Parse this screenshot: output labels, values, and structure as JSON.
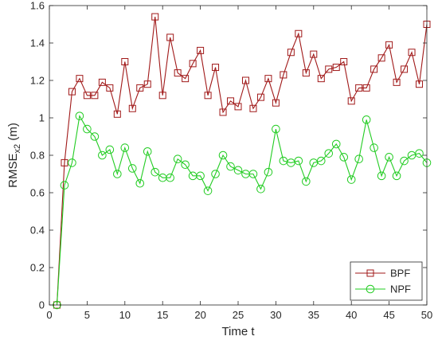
{
  "chart_data": {
    "type": "line",
    "xlabel": "Time t",
    "ylabel_main": "RMSE",
    "ylabel_sub": "x2",
    "ylabel_unit": " (m)",
    "xlim": [
      0,
      50
    ],
    "ylim": [
      0,
      1.6
    ],
    "xticks": [
      0,
      5,
      10,
      15,
      20,
      25,
      30,
      35,
      40,
      45,
      50
    ],
    "yticks": [
      0,
      0.2,
      0.4,
      0.6,
      0.8,
      1,
      1.2,
      1.4,
      1.6
    ],
    "ytick_labels": [
      "0",
      "0.2",
      "0.4",
      "0.6",
      "0.8",
      "1",
      "1.2",
      "1.4",
      "1.6"
    ],
    "grid": false,
    "legend_position": "bottom-right",
    "x": [
      1,
      2,
      3,
      4,
      5,
      6,
      7,
      8,
      9,
      10,
      11,
      12,
      13,
      14,
      15,
      16,
      17,
      18,
      19,
      20,
      21,
      22,
      23,
      24,
      25,
      26,
      27,
      28,
      29,
      30,
      31,
      32,
      33,
      34,
      35,
      36,
      37,
      38,
      39,
      40,
      41,
      42,
      43,
      44,
      45,
      46,
      47,
      48,
      49,
      50
    ],
    "series": [
      {
        "name": "BPF",
        "color": "#a01818",
        "marker": "square",
        "values": [
          0,
          0.76,
          1.14,
          1.21,
          1.12,
          1.12,
          1.19,
          1.16,
          1.02,
          1.3,
          1.05,
          1.16,
          1.18,
          1.54,
          1.12,
          1.43,
          1.24,
          1.21,
          1.29,
          1.36,
          1.12,
          1.27,
          1.03,
          1.09,
          1.06,
          1.2,
          1.05,
          1.11,
          1.21,
          1.08,
          1.23,
          1.35,
          1.45,
          1.24,
          1.34,
          1.21,
          1.26,
          1.27,
          1.3,
          1.09,
          1.16,
          1.16,
          1.26,
          1.32,
          1.39,
          1.19,
          1.26,
          1.35,
          1.18,
          1.5
        ]
      },
      {
        "name": "NPF",
        "color": "#22cc22",
        "marker": "circle",
        "values": [
          0,
          0.64,
          0.76,
          1.01,
          0.94,
          0.9,
          0.8,
          0.83,
          0.7,
          0.84,
          0.73,
          0.65,
          0.82,
          0.71,
          0.68,
          0.68,
          0.78,
          0.75,
          0.69,
          0.69,
          0.61,
          0.7,
          0.8,
          0.74,
          0.72,
          0.7,
          0.7,
          0.62,
          0.71,
          0.94,
          0.77,
          0.76,
          0.77,
          0.66,
          0.76,
          0.77,
          0.81,
          0.86,
          0.79,
          0.67,
          0.78,
          0.99,
          0.84,
          0.69,
          0.79,
          0.69,
          0.77,
          0.8,
          0.81,
          0.76
        ]
      }
    ]
  }
}
